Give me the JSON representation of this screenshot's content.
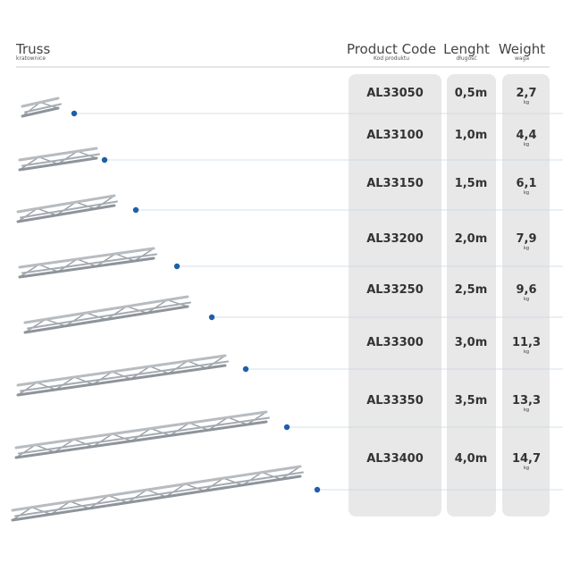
{
  "header": {
    "truss": {
      "title": "Truss",
      "subtitle": "kratownice"
    },
    "code": {
      "title": "Product Code",
      "subtitle": "Kod produktu"
    },
    "length": {
      "title": "Lenght",
      "subtitle": "długość"
    },
    "weight": {
      "title": "Weight",
      "subtitle": "waga"
    }
  },
  "rows": [
    {
      "code": "AL33050",
      "length": "0,5m",
      "weight": "2,7",
      "unit": "kg"
    },
    {
      "code": "AL33100",
      "length": "1,0m",
      "weight": "4,4",
      "unit": "kg"
    },
    {
      "code": "AL33150",
      "length": "1,5m",
      "weight": "6,1",
      "unit": "kg"
    },
    {
      "code": "AL33200",
      "length": "2,0m",
      "weight": "7,9",
      "unit": "kg"
    },
    {
      "code": "AL33250",
      "length": "2,5m",
      "weight": "9,6",
      "unit": "kg"
    },
    {
      "code": "AL33300",
      "length": "3,0m",
      "weight": "11,3",
      "unit": "kg"
    },
    {
      "code": "AL33350",
      "length": "3,5m",
      "weight": "13,3",
      "unit": "kg"
    },
    {
      "code": "AL33400",
      "length": "4,0m",
      "weight": "14,7",
      "unit": "kg"
    }
  ]
}
